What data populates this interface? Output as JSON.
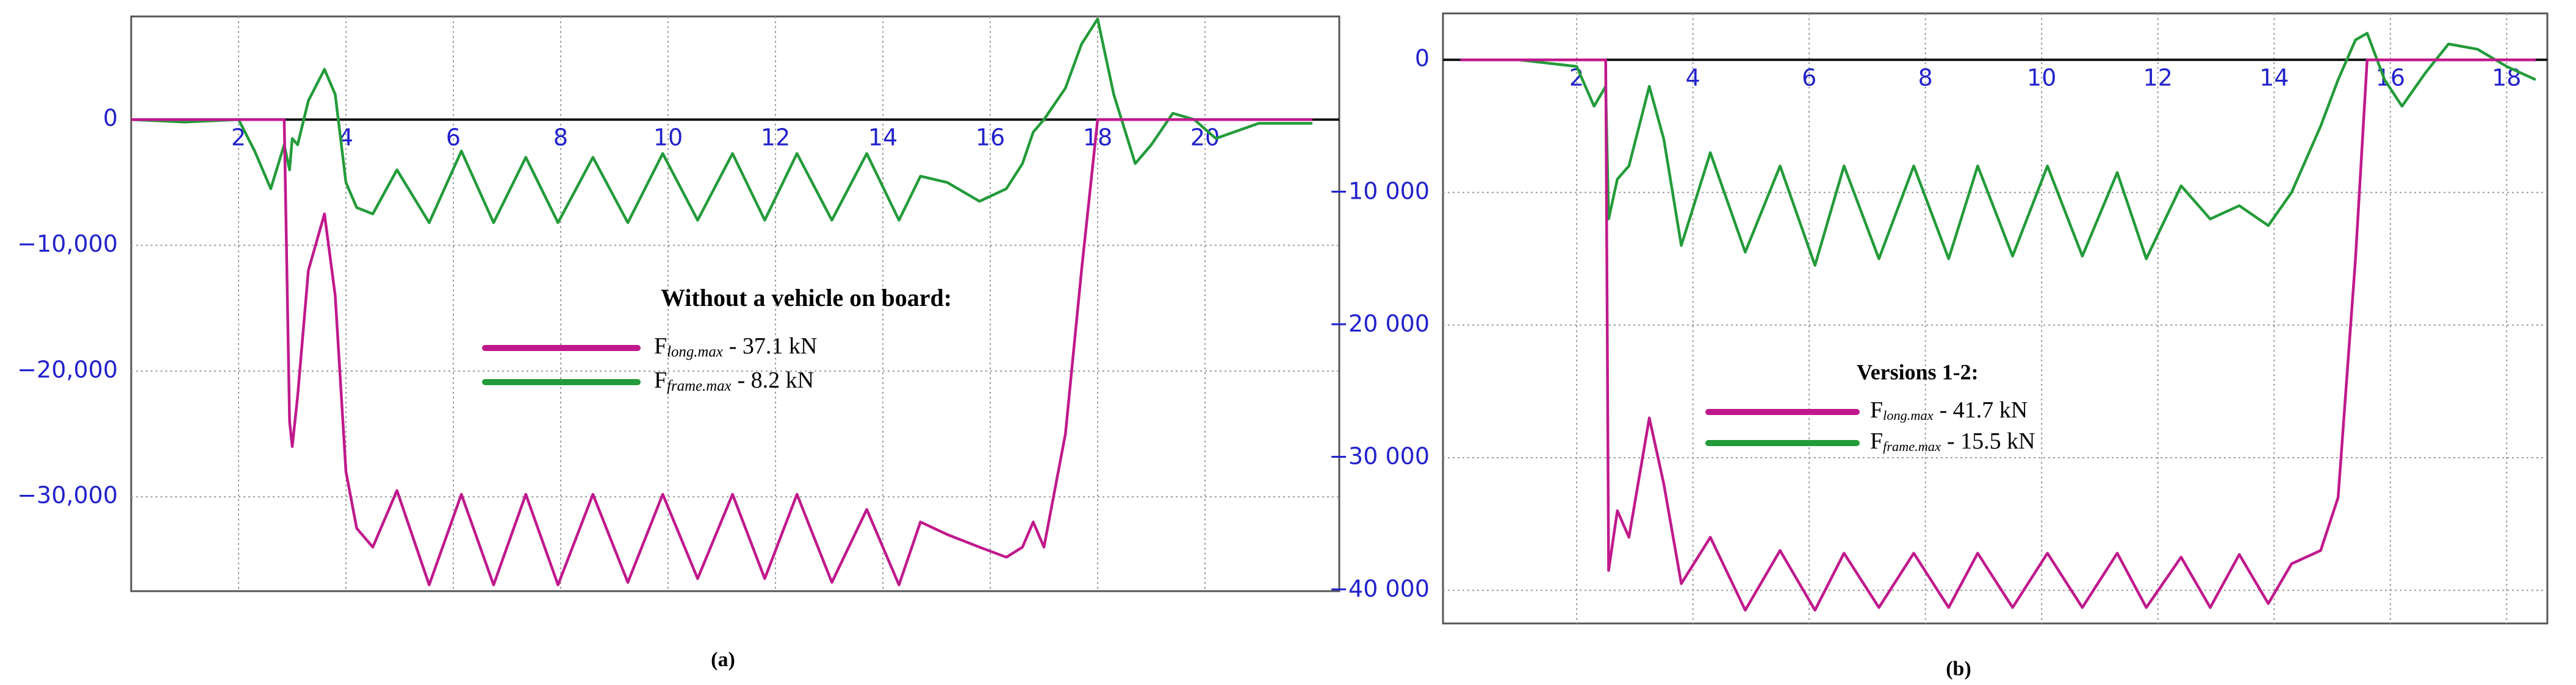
{
  "chart_data": [
    {
      "type": "line",
      "caption": "(a)",
      "legend_title": "Without a vehicle on board:",
      "x": [
        0,
        1,
        2,
        2.3,
        2.6,
        2.85,
        2.95,
        3.0,
        3.1,
        3.3,
        3.6,
        3.8,
        4.0,
        4.2,
        4.5,
        4.95,
        5.55,
        6.15,
        6.75,
        7.35,
        7.95,
        8.6,
        9.25,
        9.9,
        10.55,
        11.2,
        11.8,
        12.4,
        13.05,
        13.7,
        14.3,
        14.7,
        15.2,
        15.8,
        16.3,
        16.6,
        16.8,
        17.0,
        17.4,
        17.7,
        18.0,
        18.3,
        18.7,
        19.0,
        19.4,
        19.8,
        20.2,
        21,
        22
      ],
      "series": [
        {
          "name": "F",
          "subscript": "long.max",
          "suffix": "- 37.1 kN",
          "color": "#c0198c",
          "values": [
            0,
            0,
            0,
            0,
            0,
            0,
            -24000,
            -26000,
            -22000,
            -12000,
            -7500,
            -14000,
            -28000,
            -32500,
            -34000,
            -29500,
            -37000,
            -29800,
            -37000,
            -29800,
            -37000,
            -29800,
            -36800,
            -29800,
            -36500,
            -29800,
            -36500,
            -29800,
            -36800,
            -31000,
            -37000,
            -32000,
            -33000,
            -34000,
            -34800,
            -34000,
            -32000,
            -34000,
            -25000,
            -12000,
            0,
            0,
            0,
            0,
            0,
            0,
            0,
            0,
            0
          ]
        },
        {
          "name": "F",
          "subscript": "frame.max",
          "suffix": "- 8.2 kN",
          "color": "#239b3a",
          "values": [
            0,
            -200,
            0,
            -2500,
            -5500,
            -2000,
            -4000,
            -1500,
            -2000,
            1500,
            4000,
            2000,
            -5000,
            -7000,
            -7500,
            -4000,
            -8200,
            -2500,
            -8200,
            -3000,
            -8200,
            -3000,
            -8200,
            -2700,
            -8000,
            -2700,
            -8000,
            -2700,
            -8000,
            -2700,
            -8000,
            -4500,
            -5000,
            -6500,
            -5500,
            -3500,
            -1000,
            0,
            2500,
            6000,
            8000,
            2000,
            -3500,
            -2000,
            500,
            0,
            -1500,
            -300,
            -300
          ]
        }
      ],
      "xlim": [
        0,
        22.5
      ],
      "ylim": [
        -37500,
        8200
      ],
      "xticks": [
        2,
        4,
        6,
        8,
        10,
        12,
        14,
        16,
        18,
        20
      ],
      "yticks": [
        0,
        {
          "value": -10000,
          "label": "−10,000"
        },
        {
          "value": -20000,
          "label": "−20,000"
        },
        {
          "value": -30000,
          "label": "−30,000"
        }
      ],
      "grid": true
    },
    {
      "type": "line",
      "caption": "(b)",
      "legend_title": "Versions 1-2:",
      "x": [
        0,
        1,
        2,
        2.3,
        2.5,
        2.55,
        2.7,
        2.9,
        3.25,
        3.5,
        3.8,
        4.3,
        4.9,
        5.5,
        6.1,
        6.6,
        7.2,
        7.8,
        8.4,
        8.9,
        9.5,
        10.1,
        10.7,
        11.3,
        11.8,
        12.4,
        12.9,
        13.4,
        13.9,
        14.3,
        14.8,
        15.1,
        15.4,
        15.6,
        15.9,
        16.2,
        16.6,
        17.0,
        17.5,
        18,
        18.5
      ],
      "series": [
        {
          "name": "F",
          "subscript": "long.max",
          "suffix": "- 41.7 kN",
          "color": "#c0198c",
          "values": [
            0,
            0,
            0,
            0,
            0,
            -38500,
            -34000,
            -36000,
            -27000,
            -32000,
            -39500,
            -36000,
            -41500,
            -37000,
            -41500,
            -37200,
            -41300,
            -37200,
            -41300,
            -37200,
            -41300,
            -37200,
            -41300,
            -37200,
            -41300,
            -37500,
            -41300,
            -37300,
            -41000,
            -38000,
            -37000,
            -33000,
            -15000,
            0,
            0,
            0,
            0,
            0,
            0,
            0,
            0
          ]
        },
        {
          "name": "F",
          "subscript": "frame.max",
          "suffix": "- 15.5 kN",
          "color": "#239b3a",
          "values": [
            0,
            0,
            -500,
            -3500,
            -2000,
            -12000,
            -9000,
            -8000,
            -2000,
            -6000,
            -14000,
            -7000,
            -14500,
            -8000,
            -15500,
            -8000,
            -15000,
            -8000,
            -15000,
            -8000,
            -14800,
            -8000,
            -14800,
            -8500,
            -15000,
            -9500,
            -12000,
            -11000,
            -12500,
            -10000,
            -5000,
            -1500,
            1500,
            2000,
            -1500,
            -3500,
            -1000,
            1200,
            800,
            -500,
            -1500
          ]
        }
      ],
      "xlim": [
        -0.3,
        18.7
      ],
      "ylim": [
        -42500,
        3500
      ],
      "xticks": [
        2,
        4,
        6,
        8,
        10,
        12,
        14,
        16,
        18
      ],
      "yticks": [
        0,
        {
          "value": -10000,
          "label": "−10 000"
        },
        {
          "value": -20000,
          "label": "−20 000"
        },
        {
          "value": -30000,
          "label": "−30 000"
        },
        {
          "value": -40000,
          "label": "−40 000"
        }
      ],
      "grid": true
    }
  ]
}
